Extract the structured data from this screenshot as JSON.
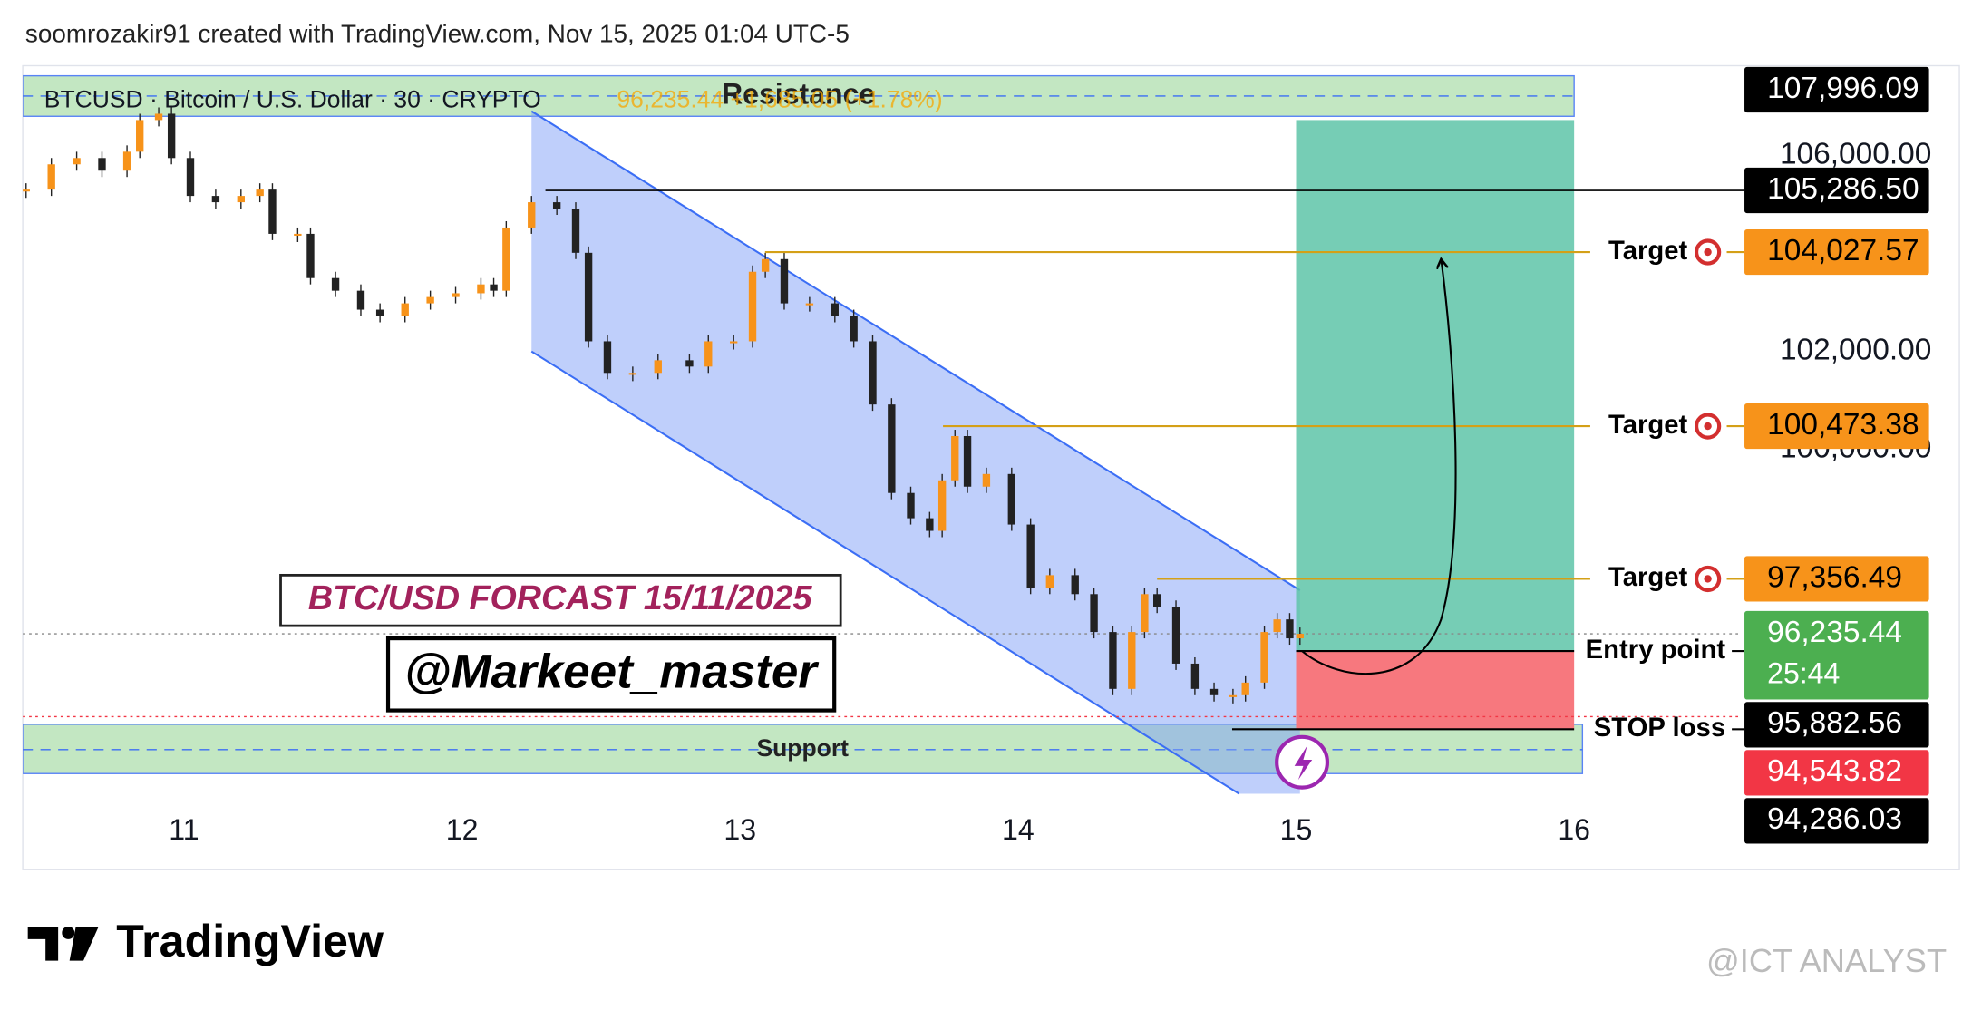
{
  "header": {
    "caption": "soomrozakir91 created with TradingView.com, Nov 15, 2025 01:04 UTC-5"
  },
  "chart_data": {
    "type": "candlestick",
    "symbol": "BTCUSD · Bitcoin / U.S. Dollar · 30 · CRYPTO",
    "quote": "96,235.44  +1,685.05 (+1.78%)",
    "x": [
      10.432,
      10.523,
      10.614,
      10.705,
      10.795,
      10.841,
      10.909,
      10.955,
      11.023,
      11.114,
      11.205,
      11.273,
      11.318,
      11.409,
      11.455,
      11.545,
      11.636,
      11.705,
      11.795,
      11.886,
      11.977,
      12.068,
      12.114,
      12.159,
      12.25,
      12.341,
      12.409,
      12.455,
      12.523,
      12.614,
      12.705,
      12.818,
      12.886,
      12.977,
      13.045,
      13.091,
      13.159,
      13.25,
      13.341,
      13.409,
      13.477,
      13.545,
      13.614,
      13.682,
      13.727,
      13.773,
      13.818,
      13.886,
      13.977,
      14.045,
      14.114,
      14.205,
      14.273,
      14.341,
      14.409,
      14.455,
      14.5,
      14.568,
      14.636,
      14.705,
      14.773,
      14.818,
      14.886,
      14.932,
      14.977,
      15.014
    ],
    "values": [
      105303,
      105819,
      105948,
      105690,
      106077,
      106723,
      106852,
      105948,
      105174,
      105045,
      105174,
      105303,
      104400,
      104400,
      103497,
      103239,
      102852,
      102723,
      102981,
      103110,
      103187,
      103368,
      103239,
      104529,
      105045,
      104916,
      104013,
      102206,
      101561,
      101561,
      101819,
      101690,
      102206,
      102206,
      103626,
      103884,
      102981,
      102981,
      102723,
      102206,
      100916,
      99110,
      98594,
      98336,
      99368,
      100271,
      99239,
      99497,
      98465,
      97174,
      97432,
      97045,
      96271,
      95110,
      96271,
      97045,
      96787,
      95626,
      95110,
      94981,
      94981,
      95239,
      96271,
      96529,
      96142,
      96235
    ],
    "up_color": "#f7931a",
    "down_color": "#222222",
    "xlim": [
      10.42,
      16.59
    ],
    "xticks": [
      11,
      12,
      13,
      14,
      15,
      16
    ],
    "ylim": [
      91419,
      107832
    ],
    "yticks": [
      {
        "value": 106000,
        "label": "106,000.00"
      },
      {
        "value": 102000,
        "label": "102,000.00"
      },
      {
        "value": 100000,
        "label": "100,000.00"
      }
    ],
    "zones": [
      {
        "name": "Resistance",
        "top": 107626,
        "bottom": 106800,
        "mid": 107213,
        "to": 16
      },
      {
        "name": "Support",
        "top": 94387,
        "bottom": 93381,
        "mid": 93871,
        "to": 16.03
      }
    ],
    "channel": {
      "points": [
        [
          12.25,
          106903
        ],
        [
          15.014,
          97123
        ],
        [
          15.014,
          92968
        ],
        [
          14.795,
          92968
        ],
        [
          12.25,
          102000
        ]
      ],
      "color": "#7f9ff7"
    },
    "levels": [
      {
        "value": 105286.5,
        "from": 12.3,
        "color": "#000000"
      },
      {
        "value": 104027.57,
        "from": 13.09,
        "color": "#d4a017",
        "label": "Target"
      },
      {
        "value": 100473.38,
        "from": 13.73,
        "color": "#d4a017",
        "label": "Target"
      },
      {
        "value": 97356.49,
        "from": 14.5,
        "color": "#d4a017",
        "label": "Target"
      }
    ],
    "position": {
      "from": 15,
      "to": 16,
      "top": 106723,
      "entry": 95882.56,
      "stop": 94286.03,
      "stop_from": 14.77,
      "entry_label": "Entry point",
      "stop_label": "STOP loss"
    },
    "dotted_lines": [
      {
        "value": 96235.44,
        "color": "#888888"
      },
      {
        "value": 94543.82,
        "color": "#f23645"
      }
    ],
    "price_tags": [
      {
        "value": 107996.09,
        "label": "107,996.09",
        "bg": "#000000",
        "fg": "#ffffff"
      },
      {
        "value": 105286.5,
        "label": "105,286.50",
        "bg": "#000000",
        "fg": "#ffffff"
      },
      {
        "value": 104027.57,
        "label": "104,027.57",
        "bg": "#f7931a",
        "fg": "#000000"
      },
      {
        "value": 100473.38,
        "label": "100,473.38",
        "bg": "#f7931a",
        "fg": "#000000"
      },
      {
        "value": 97356.49,
        "label": "97,356.49",
        "bg": "#f7931a",
        "fg": "#000000"
      },
      {
        "value": 96235.44,
        "label": "96,235.44",
        "sub": "25:44",
        "bg": "#4caf50",
        "fg": "#ffffff"
      },
      {
        "value": 95882.56,
        "label": "95,882.56",
        "bg": "#000000",
        "fg": "#ffffff"
      },
      {
        "value": 94543.82,
        "label": "94,543.82",
        "bg": "#f23645",
        "fg": "#ffffff"
      },
      {
        "value": 94286.03,
        "label": "94,286.03",
        "bg": "#000000",
        "fg": "#ffffff"
      }
    ],
    "annotations": {
      "forecast": "BTC/USD FORCAST  15/11/2025",
      "author": "@Markeet_master"
    }
  },
  "footer": {
    "logo": "TradingView",
    "watermark": "@ICT ANALYST"
  }
}
